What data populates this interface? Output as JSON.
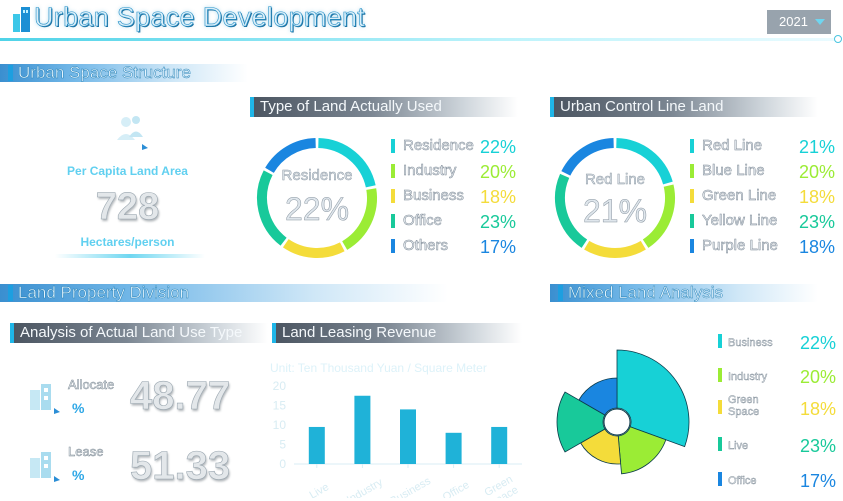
{
  "header": {
    "title": "Urban Space Development",
    "year": "2021"
  },
  "sections": {
    "structure": "Urban Space Structure",
    "property": "Land Property Division",
    "mixed": "Mixed Land Analysis"
  },
  "per_capita": {
    "label": "Per Capita Land Area",
    "value": "728",
    "unit": "Hectares/person"
  },
  "land_used": {
    "title": "Type of Land Actually Used",
    "center_label": "Residence",
    "center_value": "22%",
    "items": [
      {
        "name": "Residence",
        "pct": "22%",
        "color": "#17d1d6"
      },
      {
        "name": "Industry",
        "pct": "20%",
        "color": "#9bec35"
      },
      {
        "name": "Business",
        "pct": "18%",
        "color": "#f4dc3a"
      },
      {
        "name": "Office",
        "pct": "23%",
        "color": "#18c99a"
      },
      {
        "name": "Others",
        "pct": "17%",
        "color": "#1a86e0"
      }
    ]
  },
  "control_line": {
    "title": "Urban Control Line Land",
    "center_label": "Red Line",
    "center_value": "21%",
    "items": [
      {
        "name": "Red Line",
        "pct": "21%",
        "color": "#17d1d6"
      },
      {
        "name": "Blue Line",
        "pct": "20%",
        "color": "#9bec35"
      },
      {
        "name": "Green Line",
        "pct": "18%",
        "color": "#f4dc3a"
      },
      {
        "name": "Yellow Line",
        "pct": "23%",
        "color": "#18c99a"
      },
      {
        "name": "Purple Line",
        "pct": "18%",
        "color": "#1a86e0"
      }
    ]
  },
  "actual_use": {
    "title": "Analysis of Actual Land Use Type",
    "items": [
      {
        "name": "Allocate",
        "unit": "%",
        "value": "48.77"
      },
      {
        "name": "Lease",
        "unit": "%",
        "value": "51.33"
      }
    ]
  },
  "leasing": {
    "title": "Land Leasing Revenue",
    "unit_label": "Unit: Ten Thousand Yuan / Square Meter"
  },
  "chart_data": {
    "type": "bar",
    "categories": [
      "Live",
      "Industry",
      "Business",
      "Office",
      "Green space"
    ],
    "values": [
      9.5,
      17.5,
      14,
      8,
      9.5
    ],
    "ylim": [
      0,
      20
    ],
    "yticks": [
      0,
      5,
      10,
      15,
      20
    ],
    "grid": false
  },
  "mixed": {
    "items": [
      {
        "name": "Business",
        "pct": "22%",
        "color": "#17d1d6"
      },
      {
        "name": "Industry",
        "pct": "20%",
        "color": "#9bec35"
      },
      {
        "name": "Green Space",
        "pct": "18%",
        "color": "#f4dc3a"
      },
      {
        "name": "Live",
        "pct": "23%",
        "color": "#18c99a"
      },
      {
        "name": "Office",
        "pct": "17%",
        "color": "#1a86e0"
      }
    ]
  }
}
